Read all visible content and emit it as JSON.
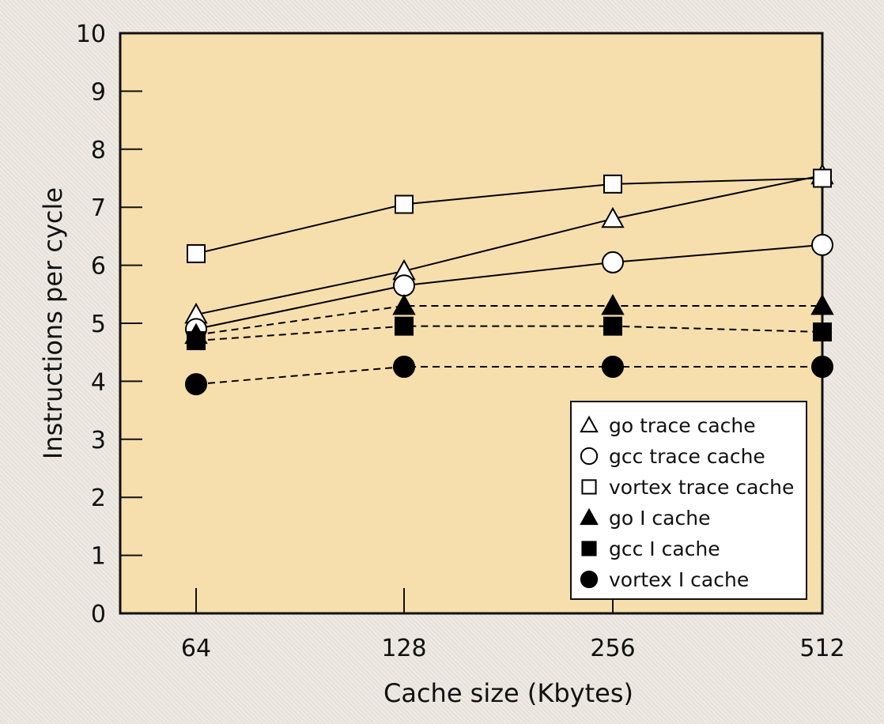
{
  "chart_data": {
    "type": "line",
    "title": "",
    "xlabel": "Cache size (Kbytes)",
    "ylabel": "Instructions per cycle",
    "categories": [
      "64",
      "128",
      "256",
      "512"
    ],
    "x_scale": "log2",
    "ylim": [
      0,
      10
    ],
    "yticks": [
      "0",
      "1",
      "2",
      "3",
      "4",
      "5",
      "6",
      "7",
      "8",
      "9",
      "10"
    ],
    "grid": false,
    "legend_position": "bottom-right",
    "plot_background": "#f6dfad",
    "series": [
      {
        "name": "go trace cache",
        "marker": "triangle-open",
        "line": "solid",
        "values": [
          5.15,
          5.9,
          6.8,
          7.55
        ]
      },
      {
        "name": "gcc trace cache",
        "marker": "circle-open",
        "line": "solid",
        "values": [
          4.9,
          5.65,
          6.05,
          6.35
        ]
      },
      {
        "name": "vortex trace cache",
        "marker": "square-open",
        "line": "solid",
        "values": [
          6.2,
          7.05,
          7.4,
          7.5
        ]
      },
      {
        "name": "go I cache",
        "marker": "triangle-filled",
        "line": "dashed",
        "values": [
          4.8,
          5.3,
          5.3,
          5.3
        ]
      },
      {
        "name": "gcc I cache",
        "marker": "square-filled",
        "line": "dashed",
        "values": [
          4.7,
          4.95,
          4.95,
          4.85
        ]
      },
      {
        "name": "vortex I cache",
        "marker": "circle-filled",
        "line": "dashed",
        "values": [
          3.95,
          4.25,
          4.25,
          4.25
        ]
      }
    ]
  }
}
